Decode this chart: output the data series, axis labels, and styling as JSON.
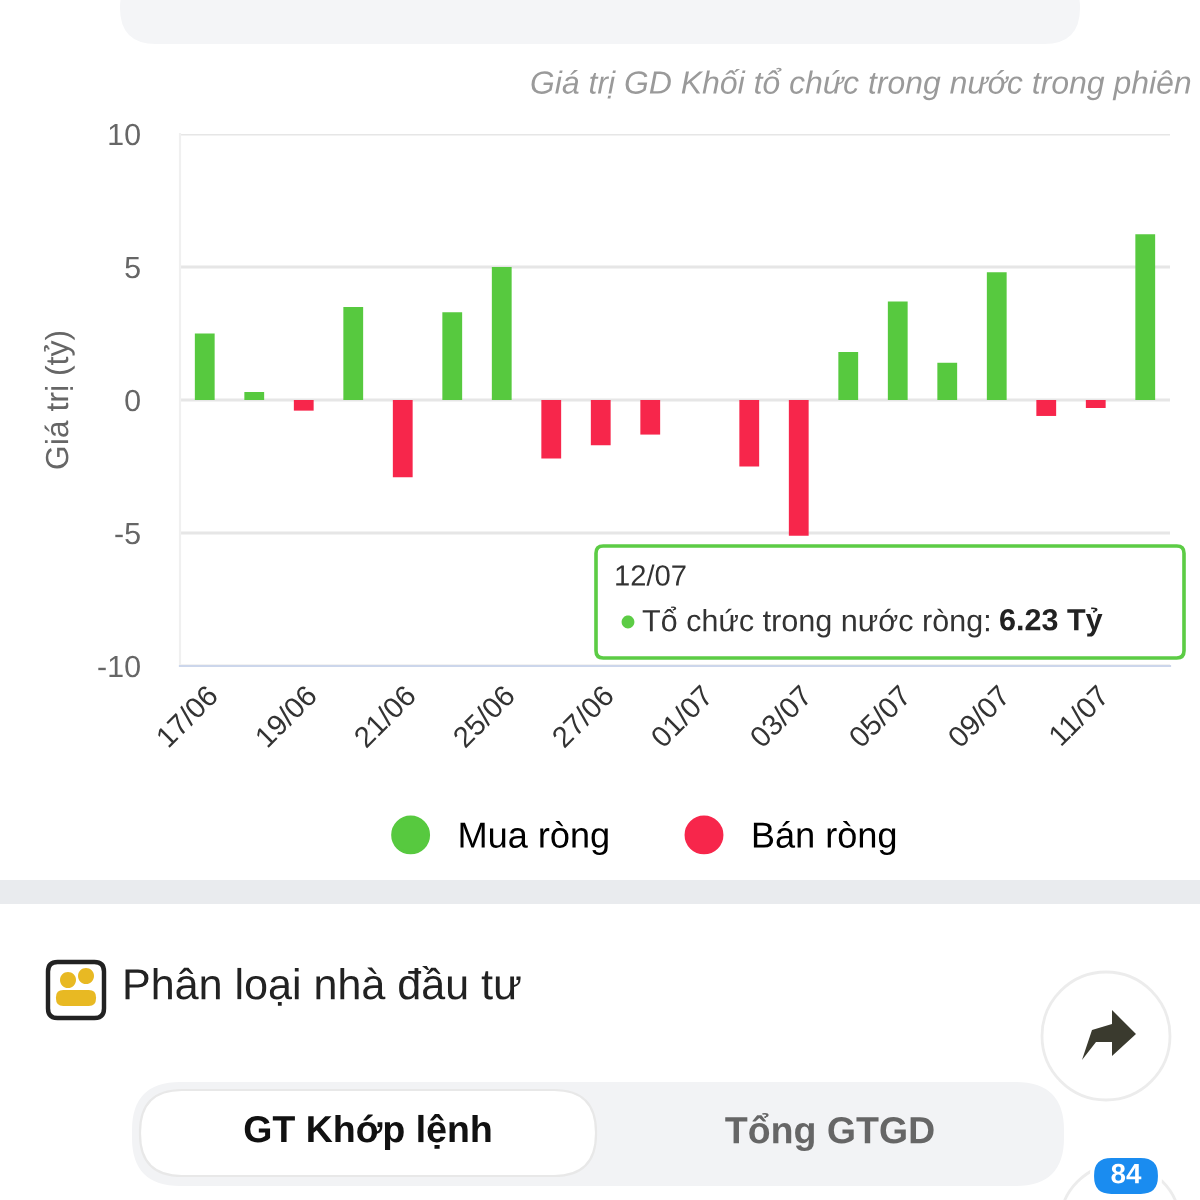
{
  "chart_data": {
    "type": "bar",
    "title": "Giá trị GD Khối tổ chức trong nước trong phiên",
    "ylabel": "Giá trị (tỷ)",
    "categories": [
      "17/06",
      null,
      "19/06",
      null,
      "21/06",
      null,
      "25/06",
      null,
      "27/06",
      null,
      "01/07",
      null,
      "03/07",
      null,
      "05/07",
      null,
      "09/07",
      null,
      "11/07",
      null
    ],
    "series": [
      {
        "name": "Mua ròng",
        "color": "#57c93f",
        "values": [
          2.5,
          0.3,
          null,
          3.5,
          null,
          3.3,
          5.0,
          null,
          null,
          null,
          null,
          null,
          null,
          1.8,
          3.7,
          1.4,
          4.8,
          null,
          null,
          6.23
        ]
      },
      {
        "name": "Bán ròng",
        "color": "#f7264b",
        "values": [
          null,
          null,
          -0.4,
          null,
          -2.9,
          null,
          null,
          -2.2,
          -1.7,
          -1.3,
          null,
          -2.5,
          -5.1,
          null,
          null,
          null,
          null,
          -0.6,
          -0.3,
          null
        ]
      }
    ],
    "stacked": true,
    "ylim": [
      -10,
      10
    ],
    "yticks": [
      -10,
      -5,
      0,
      5,
      10
    ],
    "grid": "y",
    "legend": "bottom",
    "annotations": [
      "Phân loại nhà đầu tư",
      "GT Khớp lệnh",
      "Tổng GTGD",
      "84",
      "12/07",
      "Tổ chức trong nước ròng:",
      "6.23 Tỷ"
    ]
  }
}
